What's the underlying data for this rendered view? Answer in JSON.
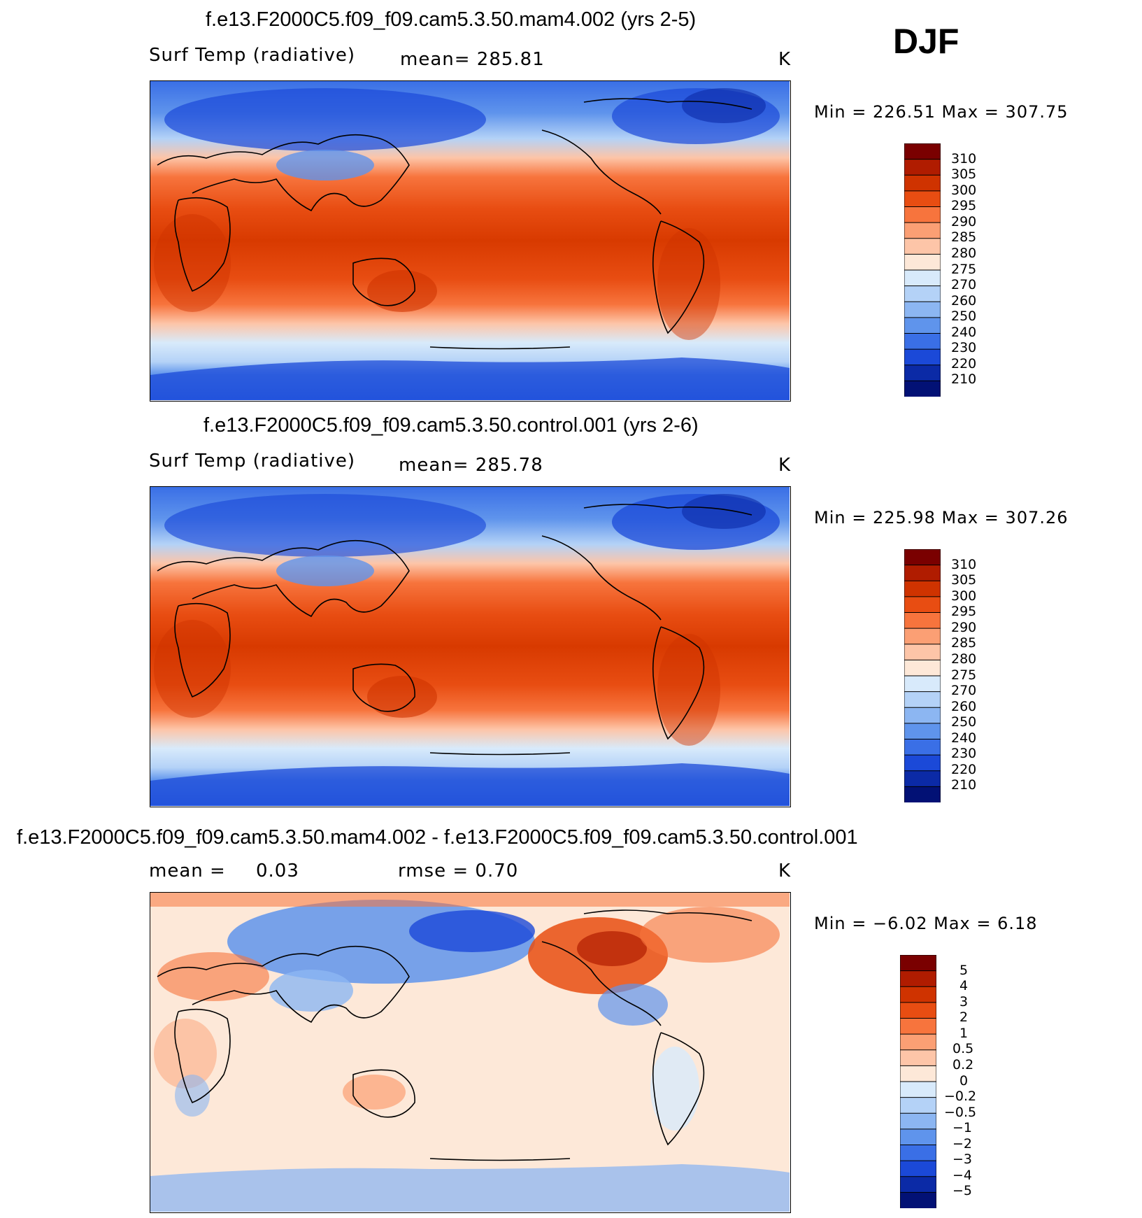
{
  "season": "DJF",
  "units": "K",
  "panels": [
    {
      "title": "f.e13.F2000C5.f09_f09.cam5.3.50.mam4.002 (yrs 2-5)",
      "field": "Surf Temp (radiative)",
      "stat1": "mean=  285.81",
      "stat2": "",
      "units": "K",
      "minmax": "Min  =  226.51  Max  =  307.75",
      "colorbar": {
        "labels": [
          "310",
          "305",
          "300",
          "295",
          "290",
          "285",
          "280",
          "275",
          "270",
          "260",
          "250",
          "240",
          "230",
          "220",
          "210"
        ],
        "colors": [
          "#7a0000",
          "#b01c00",
          "#cf3300",
          "#e84d12",
          "#f7743d",
          "#fb9f74",
          "#fdc5a8",
          "#fde8d8",
          "#d8eafb",
          "#b4d2f7",
          "#8cb6f2",
          "#5f94ec",
          "#3a6fe6",
          "#1b49d8",
          "#0b2aa6",
          "#021175"
        ]
      }
    },
    {
      "title": "f.e13.F2000C5.f09_f09.cam5.3.50.control.001 (yrs 2-6)",
      "field": "Surf Temp (radiative)",
      "stat1": "mean=  285.78",
      "stat2": "",
      "units": "K",
      "minmax": "Min  =  225.98  Max  =  307.26",
      "colorbar": {
        "labels": [
          "310",
          "305",
          "300",
          "295",
          "290",
          "285",
          "280",
          "275",
          "270",
          "260",
          "250",
          "240",
          "230",
          "220",
          "210"
        ],
        "colors": [
          "#7a0000",
          "#b01c00",
          "#cf3300",
          "#e84d12",
          "#f7743d",
          "#fb9f74",
          "#fdc5a8",
          "#fde8d8",
          "#d8eafb",
          "#b4d2f7",
          "#8cb6f2",
          "#5f94ec",
          "#3a6fe6",
          "#1b49d8",
          "#0b2aa6",
          "#021175"
        ]
      }
    },
    {
      "title": "f.e13.F2000C5.f09_f09.cam5.3.50.mam4.002 - f.e13.F2000C5.f09_f09.cam5.3.50.control.001",
      "field": "mean  =",
      "stat1": "0.03",
      "stat2": "rmse  =     0.70",
      "units": "K",
      "minmax": "Min  =    −6.02  Max  =     6.18",
      "colorbar": {
        "labels": [
          "5",
          "4",
          "3",
          "2",
          "1",
          "0.5",
          "0.2",
          "0",
          "−0.2",
          "−0.5",
          "−1",
          "−2",
          "−3",
          "−4",
          "−5"
        ],
        "colors": [
          "#7a0000",
          "#b01c00",
          "#cf3300",
          "#e84d12",
          "#f7743d",
          "#fb9f74",
          "#fdc5a8",
          "#fde8d8",
          "#d8eafb",
          "#b4d2f7",
          "#8cb6f2",
          "#5f94ec",
          "#3a6fe6",
          "#1b49d8",
          "#0b2aa6",
          "#021175"
        ]
      }
    }
  ]
}
